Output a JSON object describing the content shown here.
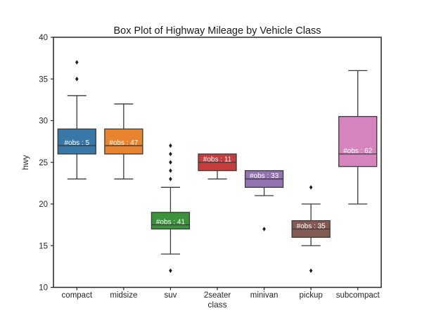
{
  "figure": {
    "background": "#ffffff"
  },
  "chart_data": {
    "type": "boxplot",
    "title": "Box Plot of Highway Mileage by Vehicle Class",
    "xlabel": "class",
    "ylabel": "hwy",
    "ylim": [
      10,
      40
    ],
    "yticks": [
      10,
      15,
      20,
      25,
      30,
      35,
      40
    ],
    "grid": false,
    "legend_position": "none",
    "axis_color": "#262626",
    "box_edge_color": "#3a3a3a",
    "outlier_color": "#1f1f1f",
    "outlier_marker": "diamond",
    "obs_label_text_color": "#ffffff",
    "categories": [
      "compact",
      "midsize",
      "suv",
      "2seater",
      "minivan",
      "pickup",
      "subcompact"
    ],
    "series": [
      {
        "category": "compact",
        "n_obs": 5,
        "obs_label": "#obs : 5",
        "whisker_low": 23,
        "q1": 26,
        "median": 27,
        "q3": 29,
        "whisker_high": 33,
        "outliers": [
          35,
          37
        ],
        "color": "#3778a9"
      },
      {
        "category": "midsize",
        "n_obs": 47,
        "obs_label": "#obs : 47",
        "whisker_low": 23,
        "q1": 26,
        "median": 27,
        "q3": 29,
        "whisker_high": 32,
        "outliers": [],
        "color": "#e8832f"
      },
      {
        "category": "suv",
        "n_obs": 41,
        "obs_label": "#obs : 41",
        "whisker_low": 14,
        "q1": 17,
        "median": 17.5,
        "q3": 19,
        "whisker_high": 22,
        "outliers": [
          23,
          24,
          25,
          26,
          27,
          12
        ],
        "color": "#3a923a"
      },
      {
        "category": "2seater",
        "n_obs": 11,
        "obs_label": "#obs : 11",
        "whisker_low": 23,
        "q1": 24,
        "median": 25,
        "q3": 26,
        "whisker_high": 26,
        "outliers": [],
        "color": "#c63d3e"
      },
      {
        "category": "minivan",
        "n_obs": 33,
        "obs_label": "#obs : 33",
        "whisker_low": 21,
        "q1": 22,
        "median": 23,
        "q3": 24,
        "whisker_high": 24,
        "outliers": [
          17
        ],
        "color": "#9372b2"
      },
      {
        "category": "pickup",
        "n_obs": 35,
        "obs_label": "#obs : 35",
        "whisker_low": 15,
        "q1": 16,
        "median": 17,
        "q3": 18,
        "whisker_high": 20,
        "outliers": [
          22,
          12
        ],
        "color": "#845b53"
      },
      {
        "category": "subcompact",
        "n_obs": 62,
        "obs_label": "#obs : 62",
        "whisker_low": 20,
        "q1": 24.5,
        "median": 26,
        "q3": 30.5,
        "whisker_high": 36,
        "outliers": [],
        "color": "#d684bd"
      }
    ]
  }
}
